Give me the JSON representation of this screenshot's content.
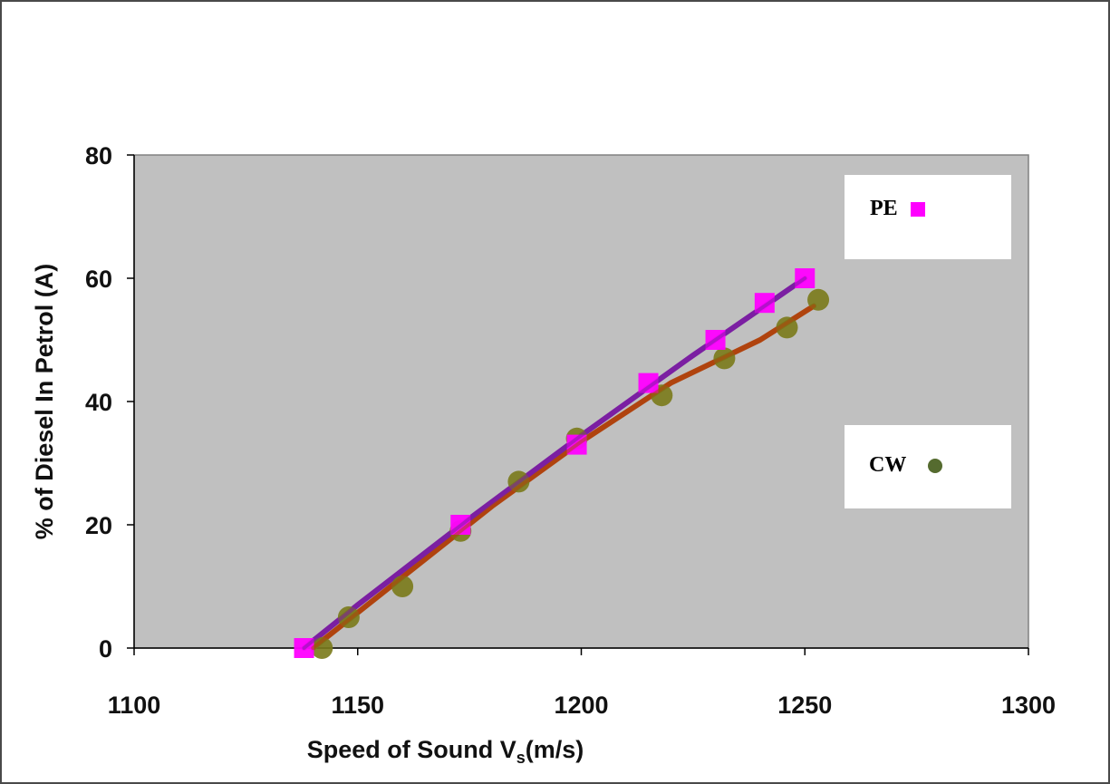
{
  "chart_data": {
    "type": "scatter",
    "xlabel": "Speed of Sound  V",
    "xlabel_sub": "s",
    "xlabel_unit": "(m/s)",
    "ylabel": "% of Diesel In Petrol (A)",
    "xlim": [
      1100,
      1300
    ],
    "ylim": [
      0,
      80
    ],
    "x_ticks": [
      1100,
      1150,
      1200,
      1250,
      1300
    ],
    "y_ticks": [
      0,
      20,
      40,
      60,
      80
    ],
    "plot_background": "#c0c0c0",
    "series": [
      {
        "name": "PE",
        "marker": "square",
        "color": "#ff00ff",
        "line_color": "#7b1fa2",
        "points": [
          [
            1138,
            0
          ],
          [
            1173,
            20
          ],
          [
            1199,
            33
          ],
          [
            1215,
            43
          ],
          [
            1230,
            50
          ],
          [
            1241,
            56
          ],
          [
            1250,
            60
          ]
        ],
        "fit": [
          [
            1138,
            0
          ],
          [
            1150,
            7
          ],
          [
            1175,
            21
          ],
          [
            1200,
            34.5
          ],
          [
            1225,
            47.5
          ],
          [
            1250,
            60
          ]
        ]
      },
      {
        "name": "CW",
        "marker": "circle",
        "color": "#7a7a1a",
        "line_color": "#b0440f",
        "points": [
          [
            1142,
            0
          ],
          [
            1148,
            5
          ],
          [
            1160,
            10
          ],
          [
            1173,
            19
          ],
          [
            1186,
            27
          ],
          [
            1199,
            34
          ],
          [
            1218,
            41
          ],
          [
            1232,
            47
          ],
          [
            1246,
            52
          ],
          [
            1253,
            56.5
          ]
        ],
        "fit": [
          [
            1140,
            0
          ],
          [
            1160,
            11.5
          ],
          [
            1180,
            23
          ],
          [
            1200,
            33.5
          ],
          [
            1220,
            43
          ],
          [
            1240,
            50
          ],
          [
            1252,
            55.5
          ]
        ]
      }
    ],
    "legend": [
      {
        "label": "PE",
        "marker": "square",
        "color": "#ff00ff"
      },
      {
        "label": "CW",
        "marker": "circle",
        "color": "#556b2f"
      }
    ]
  }
}
